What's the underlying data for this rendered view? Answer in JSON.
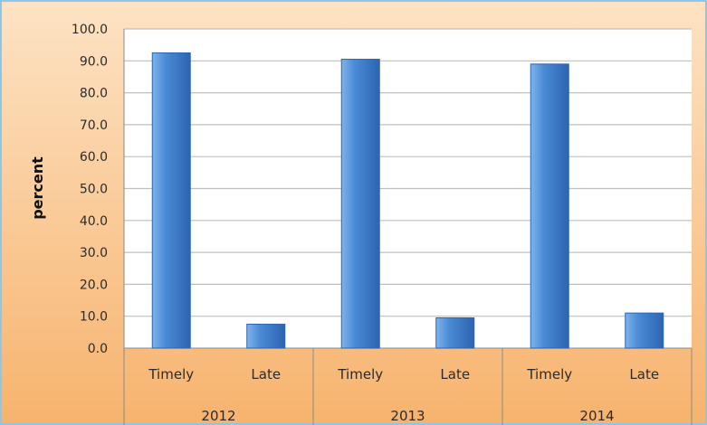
{
  "chart_data": {
    "type": "bar",
    "ylabel": "percent",
    "ylim": [
      0,
      100
    ],
    "y_ticks": [
      "0.0",
      "10.0",
      "20.0",
      "30.0",
      "40.0",
      "50.0",
      "60.0",
      "70.0",
      "80.0",
      "90.0",
      "100.0"
    ],
    "groups": [
      "2012",
      "2013",
      "2014"
    ],
    "categories": [
      "Timely",
      "Late",
      "Timely",
      "Late",
      "Timely",
      "Late"
    ],
    "values": [
      92.5,
      7.5,
      90.5,
      9.5,
      89.0,
      11.0
    ],
    "grid": true,
    "legend": "none",
    "colors": {
      "bar": "#4a8ad6",
      "bar_light": "#7fb3ea",
      "bar_dark": "#2d64b0",
      "background_top": "#fde3c4",
      "background_bottom": "#f7b36e",
      "plot_area": "#ffffff",
      "frame": "#8cc6e8",
      "gridline": "#bfbfbf",
      "text": "#2b2b2b"
    }
  }
}
